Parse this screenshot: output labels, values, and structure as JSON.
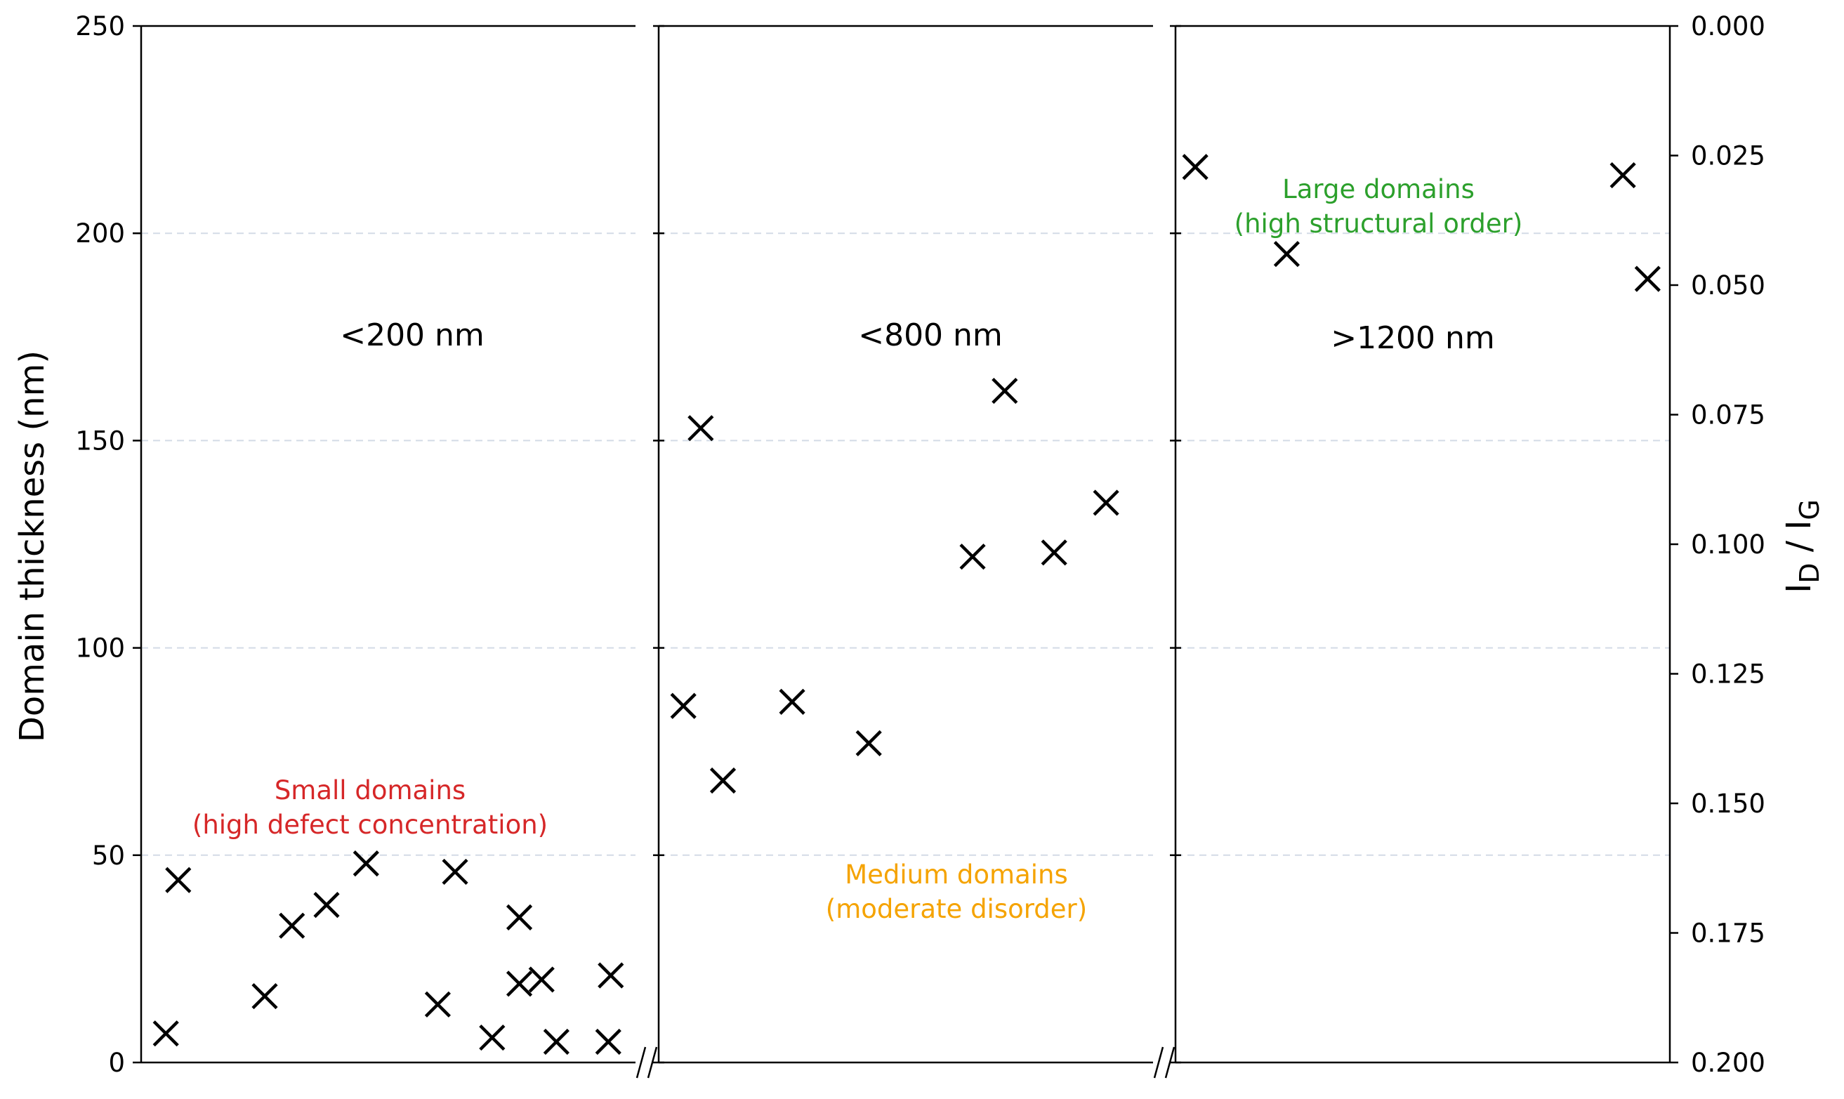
{
  "chart_data": {
    "type": "scatter",
    "ylabel": "Domain thickness (nm)",
    "ylabel_right_main": "I",
    "ylabel_right_sub1": "D",
    "ylabel_right_sep": " / I",
    "ylabel_right_sub2": "G",
    "ylim": [
      0,
      250
    ],
    "yticks": [
      "0",
      "50",
      "100",
      "150",
      "200",
      "250"
    ],
    "ylim_right": [
      0.0,
      0.2
    ],
    "right_axis_inverted": true,
    "yticks_right": [
      "0.000",
      "0.025",
      "0.050",
      "0.075",
      "0.100",
      "0.125",
      "0.150",
      "0.175",
      "0.200"
    ],
    "grid": "horizontal dashed",
    "marker": "x",
    "marker_color": "#000000",
    "panels": [
      {
        "label": "<200 nm",
        "annotation_lines": [
          "Small domains",
          "(high defect concentration)"
        ],
        "annotation_color": "#d62728",
        "points": [
          {
            "x": 0.05,
            "y": 7
          },
          {
            "x": 0.075,
            "y": 44
          },
          {
            "x": 0.25,
            "y": 16
          },
          {
            "x": 0.305,
            "y": 33
          },
          {
            "x": 0.375,
            "y": 38
          },
          {
            "x": 0.455,
            "y": 48
          },
          {
            "x": 0.6,
            "y": 14
          },
          {
            "x": 0.635,
            "y": 46
          },
          {
            "x": 0.71,
            "y": 6
          },
          {
            "x": 0.765,
            "y": 35
          },
          {
            "x": 0.765,
            "y": 19
          },
          {
            "x": 0.81,
            "y": 20
          },
          {
            "x": 0.84,
            "y": 5
          },
          {
            "x": 0.945,
            "y": 5
          },
          {
            "x": 0.95,
            "y": 21
          }
        ]
      },
      {
        "label": "<800 nm",
        "annotation_lines": [
          "Medium domains",
          "(moderate disorder)"
        ],
        "annotation_color": "#f5a300",
        "points": [
          {
            "x": 0.05,
            "y": 86
          },
          {
            "x": 0.085,
            "y": 153
          },
          {
            "x": 0.13,
            "y": 68
          },
          {
            "x": 0.27,
            "y": 87
          },
          {
            "x": 0.425,
            "y": 77
          },
          {
            "x": 0.635,
            "y": 122
          },
          {
            "x": 0.7,
            "y": 162
          },
          {
            "x": 0.8,
            "y": 123
          },
          {
            "x": 0.905,
            "y": 135
          }
        ]
      },
      {
        "label": ">1200 nm",
        "annotation_lines": [
          "Large domains",
          "(high structural order)"
        ],
        "annotation_color": "#2ca02c",
        "points": [
          {
            "x": 0.04,
            "y": 216
          },
          {
            "x": 0.225,
            "y": 195
          },
          {
            "x": 0.905,
            "y": 214
          },
          {
            "x": 0.955,
            "y": 189
          }
        ]
      }
    ]
  }
}
